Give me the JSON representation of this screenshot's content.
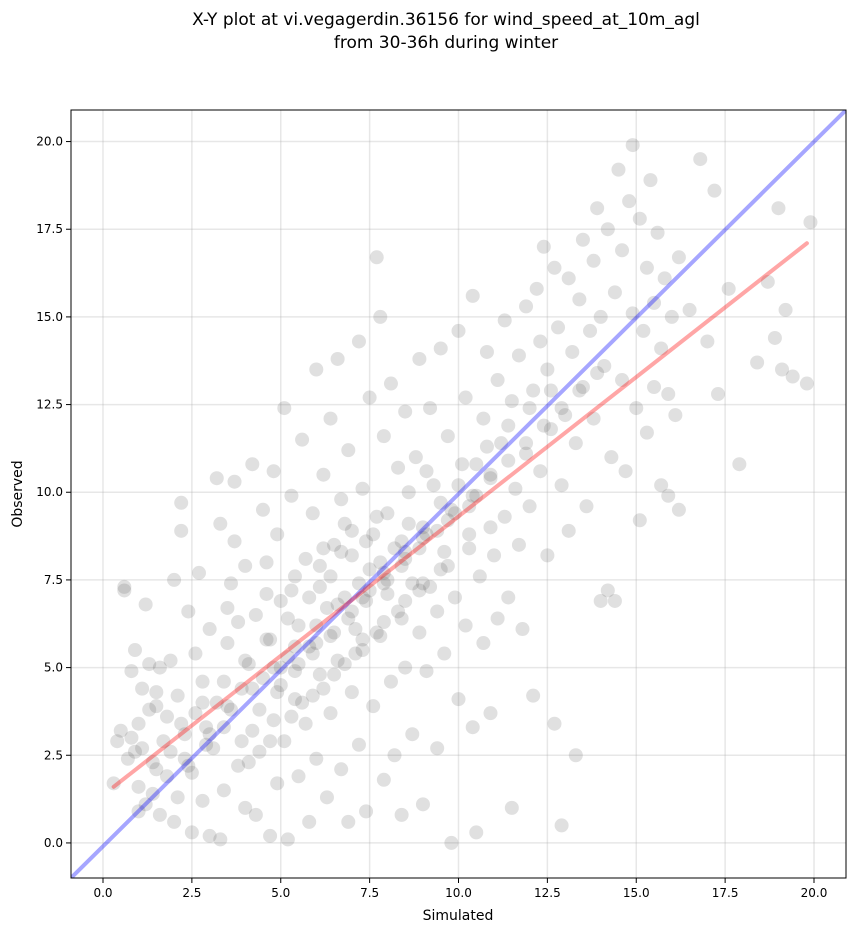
{
  "chart_data": {
    "type": "scatter",
    "title": [
      "X-Y plot at vi.vegagerdin.36156 for wind_speed_at_10m_agl",
      "from 30-36h during winter"
    ],
    "xlabel": "Simulated",
    "ylabel": "Observed",
    "xlim": [
      -0.9,
      20.9
    ],
    "ylim": [
      -1.0,
      20.9
    ],
    "xticks": [
      0.0,
      2.5,
      5.0,
      7.5,
      10.0,
      12.5,
      15.0,
      17.5,
      20.0
    ],
    "yticks": [
      0.0,
      2.5,
      5.0,
      7.5,
      10.0,
      12.5,
      15.0,
      17.5,
      20.0
    ],
    "grid": true,
    "point_color": "#555555",
    "identity_line": {
      "color": "#0000ff",
      "points": [
        [
          -0.9,
          -1.0
        ],
        [
          20.9,
          20.9
        ]
      ]
    },
    "regression_line": {
      "color": "#ff0000",
      "points": [
        [
          0.3,
          1.6
        ],
        [
          19.8,
          17.1
        ]
      ]
    },
    "points": [
      [
        0.3,
        1.7
      ],
      [
        0.4,
        2.9
      ],
      [
        0.5,
        3.2
      ],
      [
        0.6,
        7.3
      ],
      [
        0.6,
        7.2
      ],
      [
        0.7,
        2.4
      ],
      [
        0.8,
        3.0
      ],
      [
        0.8,
        4.9
      ],
      [
        0.9,
        2.6
      ],
      [
        0.9,
        5.5
      ],
      [
        1.0,
        0.9
      ],
      [
        1.0,
        1.6
      ],
      [
        1.0,
        3.4
      ],
      [
        1.1,
        2.7
      ],
      [
        1.1,
        4.4
      ],
      [
        1.2,
        6.8
      ],
      [
        1.2,
        1.1
      ],
      [
        1.3,
        3.8
      ],
      [
        1.3,
        5.1
      ],
      [
        1.4,
        2.3
      ],
      [
        1.4,
        1.4
      ],
      [
        1.5,
        4.3
      ],
      [
        1.5,
        3.9
      ],
      [
        1.6,
        5.0
      ],
      [
        1.6,
        0.8
      ],
      [
        1.7,
        2.9
      ],
      [
        1.8,
        1.9
      ],
      [
        1.8,
        3.6
      ],
      [
        1.9,
        5.2
      ],
      [
        2.0,
        7.5
      ],
      [
        2.0,
        0.6
      ],
      [
        2.1,
        1.3
      ],
      [
        2.1,
        4.2
      ],
      [
        2.2,
        8.9
      ],
      [
        2.2,
        9.7
      ],
      [
        2.3,
        2.4
      ],
      [
        2.3,
        3.1
      ],
      [
        2.4,
        6.6
      ],
      [
        2.5,
        0.3
      ],
      [
        2.5,
        2.0
      ],
      [
        2.6,
        3.7
      ],
      [
        2.6,
        5.4
      ],
      [
        2.7,
        7.7
      ],
      [
        2.8,
        1.2
      ],
      [
        2.8,
        4.6
      ],
      [
        2.9,
        3.3
      ],
      [
        3.0,
        0.2
      ],
      [
        3.0,
        6.1
      ],
      [
        3.1,
        2.7
      ],
      [
        3.2,
        10.4
      ],
      [
        3.2,
        4.0
      ],
      [
        3.3,
        0.1
      ],
      [
        3.3,
        9.1
      ],
      [
        3.4,
        1.5
      ],
      [
        3.5,
        5.7
      ],
      [
        3.5,
        3.9
      ],
      [
        3.6,
        7.4
      ],
      [
        3.7,
        10.3
      ],
      [
        3.7,
        8.6
      ],
      [
        3.8,
        2.2
      ],
      [
        3.8,
        6.3
      ],
      [
        3.9,
        4.4
      ],
      [
        4.0,
        1.0
      ],
      [
        4.0,
        7.9
      ],
      [
        4.1,
        5.1
      ],
      [
        4.2,
        10.8
      ],
      [
        4.2,
        3.2
      ],
      [
        4.3,
        0.8
      ],
      [
        4.3,
        6.5
      ],
      [
        4.4,
        2.6
      ],
      [
        4.5,
        9.5
      ],
      [
        4.5,
        4.7
      ],
      [
        4.6,
        7.1
      ],
      [
        4.7,
        0.2
      ],
      [
        4.7,
        5.8
      ],
      [
        4.8,
        10.6
      ],
      [
        4.8,
        3.5
      ],
      [
        4.9,
        1.7
      ],
      [
        4.9,
        8.8
      ],
      [
        5.0,
        4.5
      ],
      [
        5.0,
        6.9
      ],
      [
        5.1,
        12.4
      ],
      [
        5.1,
        2.9
      ],
      [
        5.2,
        0.1
      ],
      [
        5.2,
        5.3
      ],
      [
        5.3,
        9.9
      ],
      [
        5.4,
        7.6
      ],
      [
        5.4,
        4.1
      ],
      [
        5.5,
        1.9
      ],
      [
        5.5,
        6.2
      ],
      [
        5.6,
        11.5
      ],
      [
        5.7,
        3.4
      ],
      [
        5.7,
        8.1
      ],
      [
        5.8,
        5.6
      ],
      [
        5.8,
        0.6
      ],
      [
        5.9,
        9.4
      ],
      [
        6.0,
        2.4
      ],
      [
        6.0,
        13.5
      ],
      [
        6.1,
        7.3
      ],
      [
        6.1,
        4.8
      ],
      [
        6.2,
        10.5
      ],
      [
        6.3,
        1.3
      ],
      [
        6.3,
        6.7
      ],
      [
        6.4,
        12.1
      ],
      [
        6.4,
        3.7
      ],
      [
        6.5,
        8.5
      ],
      [
        6.6,
        5.2
      ],
      [
        6.6,
        13.8
      ],
      [
        6.7,
        2.1
      ],
      [
        6.7,
        9.8
      ],
      [
        6.8,
        7.0
      ],
      [
        6.9,
        0.6
      ],
      [
        6.9,
        11.2
      ],
      [
        7.0,
        4.3
      ],
      [
        7.0,
        8.9
      ],
      [
        7.1,
        6.1
      ],
      [
        7.2,
        14.3
      ],
      [
        7.2,
        2.8
      ],
      [
        7.3,
        10.1
      ],
      [
        7.3,
        5.5
      ],
      [
        7.4,
        0.9
      ],
      [
        7.5,
        12.7
      ],
      [
        7.5,
        7.8
      ],
      [
        7.6,
        3.9
      ],
      [
        7.7,
        16.7
      ],
      [
        7.7,
        9.3
      ],
      [
        7.8,
        5.9
      ],
      [
        7.8,
        15.0
      ],
      [
        7.9,
        1.8
      ],
      [
        7.9,
        11.6
      ],
      [
        8.0,
        7.1
      ],
      [
        8.1,
        4.6
      ],
      [
        8.1,
        13.1
      ],
      [
        8.2,
        8.4
      ],
      [
        8.2,
        2.5
      ],
      [
        8.3,
        10.7
      ],
      [
        8.4,
        6.4
      ],
      [
        8.4,
        0.8
      ],
      [
        8.5,
        12.3
      ],
      [
        8.5,
        5.0
      ],
      [
        8.6,
        9.1
      ],
      [
        8.7,
        7.4
      ],
      [
        8.7,
        3.1
      ],
      [
        8.8,
        11.0
      ],
      [
        8.9,
        13.8
      ],
      [
        8.9,
        6.0
      ],
      [
        9.0,
        1.1
      ],
      [
        9.0,
        8.7
      ],
      [
        9.1,
        4.9
      ],
      [
        9.2,
        12.4
      ],
      [
        9.2,
        7.3
      ],
      [
        9.3,
        10.2
      ],
      [
        9.4,
        2.7
      ],
      [
        9.4,
        6.6
      ],
      [
        9.5,
        14.1
      ],
      [
        9.6,
        8.3
      ],
      [
        9.6,
        5.4
      ],
      [
        9.7,
        11.6
      ],
      [
        9.8,
        0.0
      ],
      [
        9.8,
        9.5
      ],
      [
        9.9,
        7.0
      ],
      [
        10.0,
        14.6
      ],
      [
        10.0,
        4.1
      ],
      [
        10.1,
        10.8
      ],
      [
        10.2,
        6.2
      ],
      [
        10.2,
        12.7
      ],
      [
        10.3,
        8.8
      ],
      [
        10.4,
        3.3
      ],
      [
        10.4,
        15.6
      ],
      [
        10.5,
        0.3
      ],
      [
        10.5,
        9.9
      ],
      [
        10.6,
        7.6
      ],
      [
        10.7,
        12.1
      ],
      [
        10.7,
        5.7
      ],
      [
        10.8,
        14.0
      ],
      [
        10.9,
        3.7
      ],
      [
        10.9,
        10.5
      ],
      [
        11.0,
        8.2
      ],
      [
        11.1,
        13.2
      ],
      [
        11.1,
        6.4
      ],
      [
        11.2,
        11.4
      ],
      [
        11.3,
        9.3
      ],
      [
        11.3,
        14.9
      ],
      [
        11.4,
        7.0
      ],
      [
        11.5,
        12.6
      ],
      [
        11.5,
        1.0
      ],
      [
        11.6,
        10.1
      ],
      [
        11.7,
        13.9
      ],
      [
        11.7,
        8.5
      ],
      [
        11.8,
        6.1
      ],
      [
        11.9,
        15.3
      ],
      [
        11.9,
        11.1
      ],
      [
        12.0,
        9.6
      ],
      [
        12.1,
        12.9
      ],
      [
        12.1,
        4.2
      ],
      [
        12.2,
        15.8
      ],
      [
        12.3,
        10.6
      ],
      [
        12.3,
        14.3
      ],
      [
        12.4,
        17.0
      ],
      [
        12.5,
        8.2
      ],
      [
        12.5,
        13.5
      ],
      [
        12.6,
        11.8
      ],
      [
        12.7,
        16.4
      ],
      [
        12.7,
        3.4
      ],
      [
        12.8,
        14.7
      ],
      [
        12.9,
        10.2
      ],
      [
        12.9,
        0.5
      ],
      [
        13.0,
        12.2
      ],
      [
        13.1,
        16.1
      ],
      [
        13.1,
        8.9
      ],
      [
        13.2,
        14.0
      ],
      [
        13.3,
        2.5
      ],
      [
        13.3,
        11.4
      ],
      [
        13.4,
        15.5
      ],
      [
        13.5,
        13.0
      ],
      [
        13.5,
        17.2
      ],
      [
        13.6,
        9.6
      ],
      [
        13.7,
        14.6
      ],
      [
        13.8,
        16.6
      ],
      [
        13.8,
        12.1
      ],
      [
        13.9,
        18.1
      ],
      [
        14.0,
        6.9
      ],
      [
        14.0,
        15.0
      ],
      [
        14.1,
        13.6
      ],
      [
        14.2,
        7.2
      ],
      [
        14.2,
        17.5
      ],
      [
        14.3,
        11.0
      ],
      [
        14.4,
        15.7
      ],
      [
        14.4,
        6.9
      ],
      [
        14.5,
        19.2
      ],
      [
        14.6,
        13.2
      ],
      [
        14.6,
        16.9
      ],
      [
        14.7,
        10.6
      ],
      [
        14.8,
        18.3
      ],
      [
        14.9,
        15.1
      ],
      [
        14.9,
        19.9
      ],
      [
        15.0,
        12.4
      ],
      [
        15.1,
        17.8
      ],
      [
        15.1,
        9.2
      ],
      [
        15.2,
        14.6
      ],
      [
        15.3,
        16.4
      ],
      [
        15.3,
        11.7
      ],
      [
        15.4,
        18.9
      ],
      [
        15.5,
        15.4
      ],
      [
        15.5,
        13.0
      ],
      [
        15.6,
        17.4
      ],
      [
        15.7,
        10.2
      ],
      [
        15.7,
        14.1
      ],
      [
        15.8,
        16.1
      ],
      [
        15.9,
        12.8
      ],
      [
        15.9,
        9.9
      ],
      [
        16.0,
        15.0
      ],
      [
        16.1,
        12.2
      ],
      [
        16.2,
        16.7
      ],
      [
        16.2,
        9.5
      ],
      [
        16.5,
        15.2
      ],
      [
        16.8,
        19.5
      ],
      [
        17.0,
        14.3
      ],
      [
        17.2,
        18.6
      ],
      [
        17.3,
        12.8
      ],
      [
        17.6,
        15.8
      ],
      [
        17.9,
        10.8
      ],
      [
        18.4,
        13.7
      ],
      [
        18.7,
        16.0
      ],
      [
        18.9,
        14.4
      ],
      [
        19.0,
        18.1
      ],
      [
        19.1,
        13.5
      ],
      [
        19.2,
        15.2
      ],
      [
        19.4,
        13.3
      ],
      [
        19.8,
        13.1
      ],
      [
        19.9,
        17.7
      ],
      [
        3.5,
        6.7
      ],
      [
        4.6,
        8.0
      ],
      [
        5.3,
        7.2
      ],
      [
        6.2,
        8.4
      ],
      [
        6.8,
        9.1
      ],
      [
        7.4,
        8.6
      ],
      [
        8.0,
        9.4
      ],
      [
        8.6,
        10.0
      ],
      [
        9.1,
        10.6
      ],
      [
        5.6,
        4.0
      ],
      [
        6.2,
        4.4
      ],
      [
        6.8,
        5.1
      ],
      [
        7.3,
        5.8
      ],
      [
        7.9,
        6.3
      ],
      [
        8.5,
        6.9
      ],
      [
        9.0,
        7.4
      ],
      [
        9.7,
        7.9
      ],
      [
        10.3,
        8.4
      ],
      [
        10.9,
        9.0
      ],
      [
        3.0,
        3.1
      ],
      [
        3.6,
        3.8
      ],
      [
        4.2,
        4.4
      ],
      [
        4.8,
        5.0
      ],
      [
        5.4,
        5.6
      ],
      [
        6.0,
        6.2
      ],
      [
        6.6,
        6.8
      ],
      [
        7.2,
        7.4
      ],
      [
        7.8,
        8.0
      ],
      [
        8.4,
        8.6
      ],
      [
        2.2,
        3.4
      ],
      [
        2.8,
        4.0
      ],
      [
        3.4,
        4.6
      ],
      [
        4.0,
        5.2
      ],
      [
        4.6,
        5.8
      ],
      [
        5.2,
        6.4
      ],
      [
        5.8,
        7.0
      ],
      [
        6.4,
        7.6
      ],
      [
        7.0,
        8.2
      ],
      [
        7.6,
        8.8
      ],
      [
        4.1,
        2.3
      ],
      [
        4.7,
        2.9
      ],
      [
        5.3,
        3.6
      ],
      [
        5.9,
        4.2
      ],
      [
        6.5,
        4.8
      ],
      [
        7.1,
        5.4
      ],
      [
        7.7,
        6.0
      ],
      [
        8.3,
        6.6
      ],
      [
        8.9,
        7.2
      ],
      [
        9.5,
        7.8
      ],
      [
        1.5,
        2.1
      ],
      [
        1.9,
        2.6
      ],
      [
        2.4,
        2.2
      ],
      [
        2.9,
        2.8
      ],
      [
        3.4,
        3.3
      ],
      [
        3.9,
        2.9
      ],
      [
        4.4,
        3.8
      ],
      [
        4.9,
        4.3
      ],
      [
        5.4,
        4.9
      ],
      [
        5.9,
        5.4
      ],
      [
        6.4,
        5.9
      ],
      [
        6.9,
        6.4
      ],
      [
        7.4,
        6.9
      ],
      [
        7.9,
        7.4
      ],
      [
        8.4,
        7.9
      ],
      [
        8.9,
        8.4
      ],
      [
        9.4,
        8.9
      ],
      [
        9.9,
        9.4
      ],
      [
        10.4,
        9.9
      ],
      [
        10.9,
        10.4
      ],
      [
        11.4,
        10.9
      ],
      [
        11.9,
        11.4
      ],
      [
        12.4,
        11.9
      ],
      [
        12.9,
        12.4
      ],
      [
        13.4,
        12.9
      ],
      [
        13.9,
        13.4
      ],
      [
        6.1,
        7.9
      ],
      [
        6.7,
        8.3
      ],
      [
        7.3,
        7.0
      ],
      [
        7.9,
        7.7
      ],
      [
        8.5,
        8.1
      ],
      [
        9.1,
        8.8
      ],
      [
        9.7,
        9.2
      ],
      [
        10.3,
        9.6
      ],
      [
        10.8,
        11.3
      ],
      [
        11.4,
        11.9
      ],
      [
        12.0,
        12.4
      ],
      [
        12.6,
        12.9
      ],
      [
        5.0,
        5.0
      ],
      [
        5.5,
        5.1
      ],
      [
        6.0,
        5.7
      ],
      [
        6.5,
        6.0
      ],
      [
        7.0,
        6.6
      ],
      [
        7.5,
        7.2
      ],
      [
        8.0,
        7.5
      ],
      [
        8.5,
        8.3
      ],
      [
        9.0,
        9.0
      ],
      [
        9.5,
        9.7
      ],
      [
        10.0,
        10.2
      ],
      [
        10.5,
        10.8
      ]
    ]
  }
}
